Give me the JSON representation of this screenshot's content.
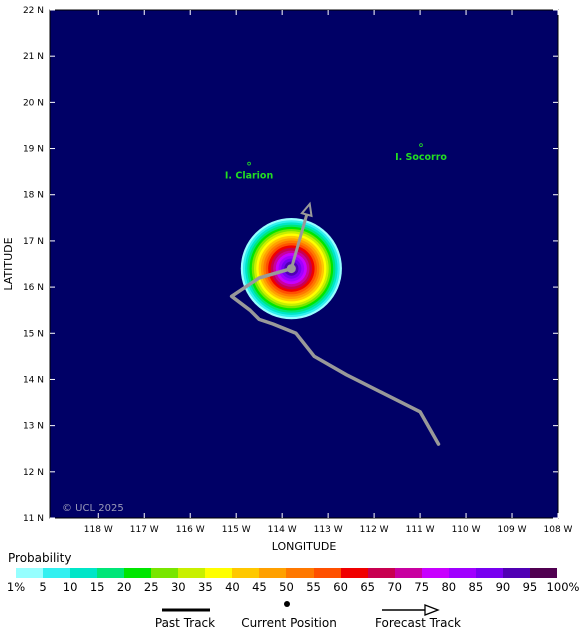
{
  "axes": {
    "xlabel": "LONGITUDE",
    "ylabel": "LATITUDE",
    "lon_ticks": [
      {
        "value": -118,
        "label": "118 W"
      },
      {
        "value": -117,
        "label": "117 W"
      },
      {
        "value": -116,
        "label": "116 W"
      },
      {
        "value": -115,
        "label": "115 W"
      },
      {
        "value": -114,
        "label": "114 W"
      },
      {
        "value": -113,
        "label": "113 W"
      },
      {
        "value": -112,
        "label": "112 W"
      },
      {
        "value": -111,
        "label": "111 W"
      },
      {
        "value": -110,
        "label": "110 W"
      },
      {
        "value": -109,
        "label": "109 W"
      },
      {
        "value": -108,
        "label": "108 W"
      }
    ],
    "lat_ticks": [
      {
        "value": 11,
        "label": "11 N"
      },
      {
        "value": 12,
        "label": "12 N"
      },
      {
        "value": 13,
        "label": "13 N"
      },
      {
        "value": 14,
        "label": "14 N"
      },
      {
        "value": 15,
        "label": "15 N"
      },
      {
        "value": 16,
        "label": "16 N"
      },
      {
        "value": 17,
        "label": "17 N"
      },
      {
        "value": 18,
        "label": "18 N"
      },
      {
        "value": 19,
        "label": "19 N"
      },
      {
        "value": 20,
        "label": "20 N"
      },
      {
        "value": 21,
        "label": "21 N"
      },
      {
        "value": 22,
        "label": "22 N"
      }
    ],
    "lon_range": [
      -119.05,
      -108
    ],
    "lat_range": [
      11,
      22
    ]
  },
  "map": {
    "background_color": "#000066",
    "credit": "© UCL 2025",
    "islands": [
      {
        "name": "I. Clarion",
        "lon": -114.72,
        "lat": 18.35
      },
      {
        "name": "I. Socorro",
        "lon": -110.98,
        "lat": 18.75
      }
    ],
    "past_track": [
      {
        "lon": -110.6,
        "lat": 12.6
      },
      {
        "lon": -111.0,
        "lat": 13.3
      },
      {
        "lon": -111.8,
        "lat": 13.7
      },
      {
        "lon": -112.6,
        "lat": 14.1
      },
      {
        "lon": -113.3,
        "lat": 14.5
      },
      {
        "lon": -113.7,
        "lat": 15.0
      },
      {
        "lon": -114.2,
        "lat": 15.2
      },
      {
        "lon": -114.5,
        "lat": 15.3
      },
      {
        "lon": -114.7,
        "lat": 15.5
      },
      {
        "lon": -115.1,
        "lat": 15.8
      },
      {
        "lon": -114.5,
        "lat": 16.2
      },
      {
        "lon": -113.8,
        "lat": 16.4
      }
    ],
    "current_position": {
      "lon": -113.8,
      "lat": 16.4
    },
    "forecast_track": {
      "from": {
        "lon": -113.8,
        "lat": 16.4
      },
      "to": {
        "lon": -113.4,
        "lat": 17.8
      }
    },
    "probability_field": {
      "center_lon": -113.8,
      "center_lat": 16.4,
      "radius_deg": 1.1
    },
    "track_color": "#999999"
  },
  "legend": {
    "title": "Probability",
    "labels": [
      "1%",
      "5",
      "10",
      "15",
      "20",
      "25",
      "30",
      "35",
      "40",
      "45",
      "50",
      "55",
      "60",
      "65",
      "70",
      "75",
      "80",
      "85",
      "90",
      "95",
      "100%"
    ],
    "colors": [
      "#96ffff",
      "#32f0f0",
      "#00e6c8",
      "#00e678",
      "#00e600",
      "#78e600",
      "#c8f000",
      "#ffff00",
      "#ffc800",
      "#ffa000",
      "#ff7800",
      "#ff5000",
      "#f00000",
      "#c80050",
      "#c800a0",
      "#c800ff",
      "#a000ff",
      "#7800f0",
      "#5000b4",
      "#500050"
    ],
    "past_track_label": "Past Track",
    "current_position_label": "Current Position",
    "forecast_track_label": "Forecast Track"
  }
}
